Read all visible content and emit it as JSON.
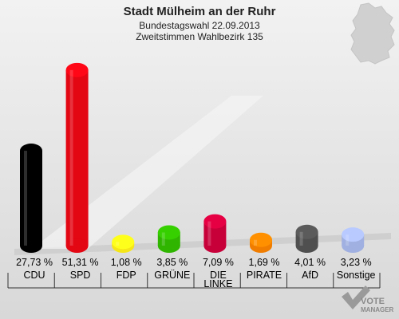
{
  "header": {
    "title": "Stadt Mülheim an der Ruhr",
    "subtitle": "Bundestagswahl 22.09.2013",
    "subtitle2": "Zweitstimmen Wahlbezirk 135"
  },
  "logo": {
    "line1": "VOTE",
    "line2": "MANAGER"
  },
  "chart_data": {
    "type": "bar",
    "title": "Stadt Mülheim an der Ruhr",
    "subtitle": "Bundestagswahl 22.09.2013 · Zweitstimmen Wahlbezirk 135",
    "categories": [
      "CDU",
      "SPD",
      "FDP",
      "GRÜNE",
      "DIE LINKE",
      "PIRATE",
      "AfD",
      "Sonstige"
    ],
    "value_labels": [
      "27,73 %",
      "51,31 %",
      "1,08 %",
      "3,85 %",
      "7,09 %",
      "1,69 %",
      "4,01 %",
      "3,23 %"
    ],
    "values": [
      27.73,
      51.31,
      1.08,
      3.85,
      7.09,
      1.69,
      4.01,
      3.23
    ],
    "colors": [
      "#000000",
      "#e30613",
      "#f5e618",
      "#2fb500",
      "#c8003a",
      "#f07d00",
      "#4f4f4f",
      "#a0b0e0"
    ],
    "unit": "%",
    "ylim": [
      0,
      55
    ],
    "grid": false,
    "legend": "none"
  }
}
